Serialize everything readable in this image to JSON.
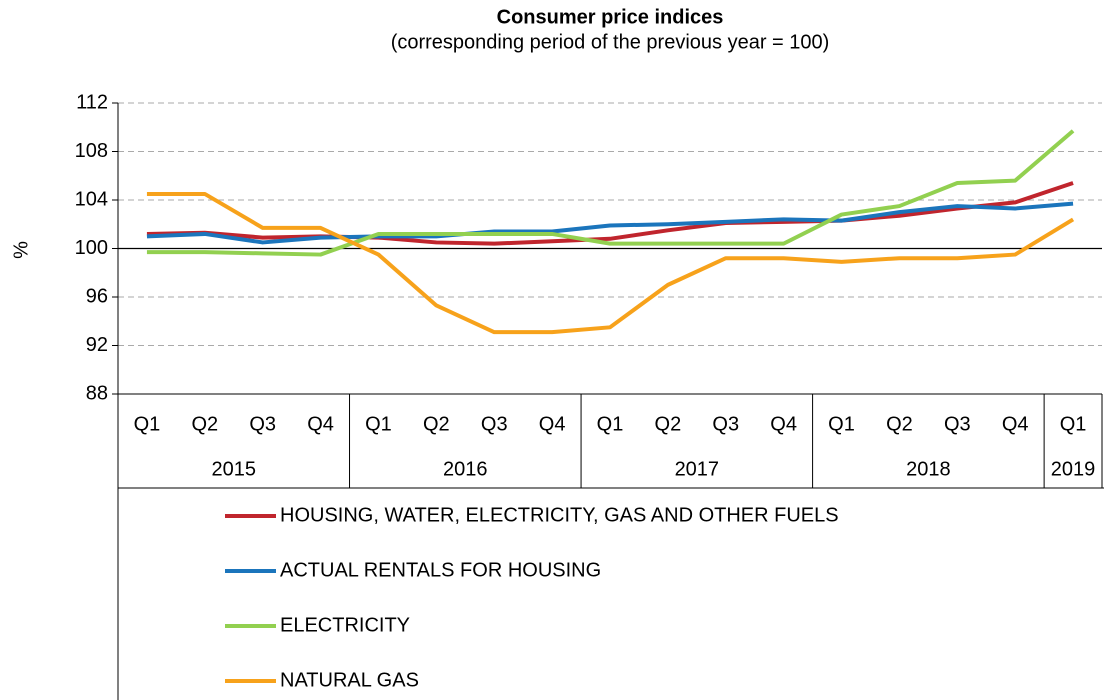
{
  "chart_data": {
    "type": "line",
    "title": "Consumer price indices",
    "subtitle": "(corresponding period of the previous year = 100)",
    "y_label": "%",
    "categories": [
      "Q1",
      "Q2",
      "Q3",
      "Q4",
      "Q1",
      "Q2",
      "Q3",
      "Q4",
      "Q1",
      "Q2",
      "Q3",
      "Q4",
      "Q1",
      "Q2",
      "Q3",
      "Q4",
      "Q1"
    ],
    "years": [
      "2015",
      "2016",
      "2017",
      "2018",
      "2019"
    ],
    "series": [
      {
        "name": "HOUSING, WATER, ELECTRICITY, GAS AND OTHER FUELS",
        "color": "#c0252d",
        "values": [
          101.2,
          101.3,
          100.9,
          101.0,
          100.9,
          100.5,
          100.4,
          100.6,
          100.8,
          101.5,
          102.1,
          102.2,
          102.3,
          102.7,
          103.3,
          103.8,
          105.4
        ]
      },
      {
        "name": "ACTUAL RENTALS FOR HOUSING",
        "color": "#1b75bc",
        "values": [
          101.0,
          101.2,
          100.5,
          100.9,
          101.0,
          101.0,
          101.4,
          101.4,
          101.9,
          102.0,
          102.2,
          102.4,
          102.3,
          103.0,
          103.5,
          103.3,
          103.7
        ]
      },
      {
        "name": "ELECTRICITY",
        "color": "#92d050",
        "values": [
          99.7,
          99.7,
          99.6,
          99.5,
          101.2,
          101.2,
          101.2,
          101.2,
          100.4,
          100.4,
          100.4,
          100.4,
          102.8,
          103.5,
          105.4,
          105.6,
          109.7
        ]
      },
      {
        "name": "NATURAL GAS",
        "color": "#f7a21b",
        "values": [
          104.5,
          104.5,
          101.7,
          101.7,
          99.5,
          95.3,
          93.1,
          93.1,
          93.5,
          97.0,
          99.2,
          99.2,
          98.9,
          99.2,
          99.2,
          99.5,
          102.4
        ]
      }
    ],
    "ylim": [
      88,
      112
    ],
    "yticks": [
      88,
      92,
      96,
      100,
      104,
      108,
      112
    ],
    "reference_line": 100,
    "grid": true,
    "legend": "bottom"
  }
}
